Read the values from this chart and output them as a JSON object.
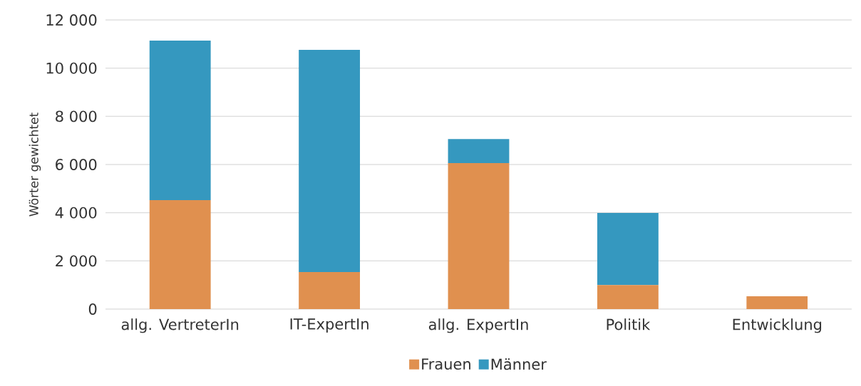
{
  "chart_data": {
    "type": "bar",
    "stacked": true,
    "ylabel": "Wörter gewichtet",
    "categories": [
      "allg. VertreterIn",
      "IT-ExpertIn",
      "allg. ExpertIn",
      "Politik",
      "Entwicklung"
    ],
    "series": [
      {
        "name": "Frauen",
        "color": "#e0904f",
        "values": [
          4520,
          1540,
          6060,
          1000,
          530
        ]
      },
      {
        "name": "Männer",
        "color": "#3598bf",
        "values": [
          6620,
          9220,
          1000,
          2990,
          null
        ]
      }
    ],
    "ylim": [
      0,
      12000
    ],
    "yticks": [
      {
        "value": 0,
        "label": "0"
      },
      {
        "value": 2000,
        "label": "2 000"
      },
      {
        "value": 4000,
        "label": "4 000"
      },
      {
        "value": 6000,
        "label": "6 000"
      },
      {
        "value": 8000,
        "label": "8 000"
      },
      {
        "value": 10000,
        "label": "10 000"
      },
      {
        "value": 12000,
        "label": "12 000"
      }
    ],
    "grid": "y",
    "legend": "bottom"
  }
}
